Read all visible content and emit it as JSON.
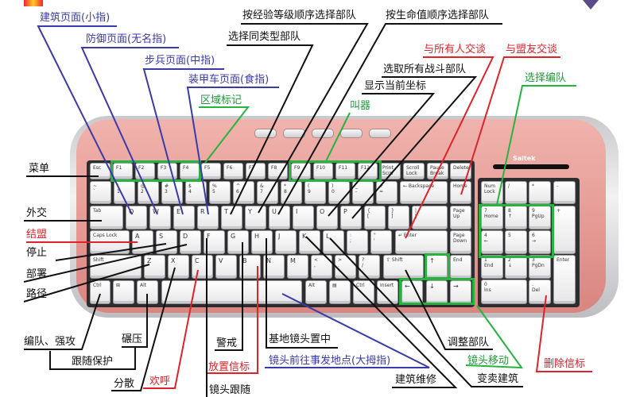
{
  "keyboard": {
    "brand": "Saitek",
    "row_function": [
      "Esc",
      "F1",
      "F2",
      "F3",
      "F4",
      "F5",
      "F6",
      "F7",
      "F8",
      "F9",
      "F10",
      "F11",
      "F12",
      "Print\nScrn",
      "Scroll\nLock",
      "Pause\nBreak",
      "Delete"
    ],
    "row_number": [
      "~\n`",
      "!\n1",
      "@\n2",
      "#\n3",
      "$\n4",
      "%\n5",
      "^\n6",
      "&\n7",
      "*\n8",
      "(\n9",
      ")\n0",
      "_\n-",
      "+\n=",
      "← Backspace",
      "Home"
    ],
    "row_q": [
      "Tab",
      "Q",
      "W",
      "E",
      "R",
      "T",
      "Y",
      "U",
      "I",
      "O",
      "P",
      "{\n[",
      "}\n]",
      "|\n\\",
      "Page\nUp"
    ],
    "row_a": [
      "Caps Lock",
      "A",
      "S",
      "D",
      "F",
      "G",
      "H",
      "J",
      "K",
      "L",
      ":\n;",
      "\"\n'",
      "↵ Enter",
      "Page\nDown"
    ],
    "row_z": [
      "Shift",
      "Z",
      "X",
      "C",
      "V",
      "B",
      "N",
      "M",
      "<\n,",
      ">\n.",
      "?\n/",
      "⇧ Shift",
      "↑",
      "End"
    ],
    "row_bottom": [
      "Ctrl",
      "⊞",
      "Alt",
      "",
      "Alt",
      "▤",
      "Ctrl",
      "Insert",
      "←",
      "↓",
      "→"
    ],
    "numpad": [
      "Num\nLock",
      "/",
      "*",
      "-",
      "7\nHome",
      "8\n↑",
      "9\nPgUp",
      "+",
      "4\n←",
      "5",
      "6\n→",
      "1\nEnd",
      "2\n↓",
      "3\nPgDn",
      "Enter",
      "0\nIns",
      ".\nDel"
    ]
  },
  "annotations": {
    "building_page": "建筑页面(小指)",
    "defense_page": "防御页面(无名指)",
    "infantry_page": "步兵页面(中指)",
    "vehicle_page": "装甲车页面(食指)",
    "area_mark": "区域标记",
    "select_by_rank": "按经验等级顺序选择部队",
    "select_same_type": "选择同类型部队",
    "select_by_health": "按生命值顺序选择部队",
    "select_all_combat": "选取所有战斗部队",
    "show_coords": "显示当前坐标",
    "shout": "叫器",
    "talk_all": "与所有人交谈",
    "talk_allies": "与盟友交谈",
    "select_group": "选择编队",
    "menu": "菜单",
    "diplomacy": "外交",
    "alliance": "结盟",
    "stop": "停止",
    "deploy": "部署",
    "path": "路径",
    "group_force_attack": "编队、强攻",
    "crush": "碾压",
    "follow_guard": "跟随保护",
    "scatter": "分散",
    "cheer": "欢呼",
    "guard": "警戒",
    "place_beacon": "放置信标",
    "camera_follow": "镜头跟随",
    "center_base": "基地镜头置中",
    "camera_event": "镜头前往事发地点(大拇指)",
    "repair": "建筑维修",
    "sell": "变卖建筑",
    "adjust_units": "调整部队",
    "camera_move": "镜头移动",
    "delete_beacon": "删除信标"
  },
  "colors": {
    "blue": "#3a3aa8",
    "red": "#e0222a",
    "green": "#27b33f",
    "black": "#111111",
    "keyboard_pink": "#e59a94"
  }
}
